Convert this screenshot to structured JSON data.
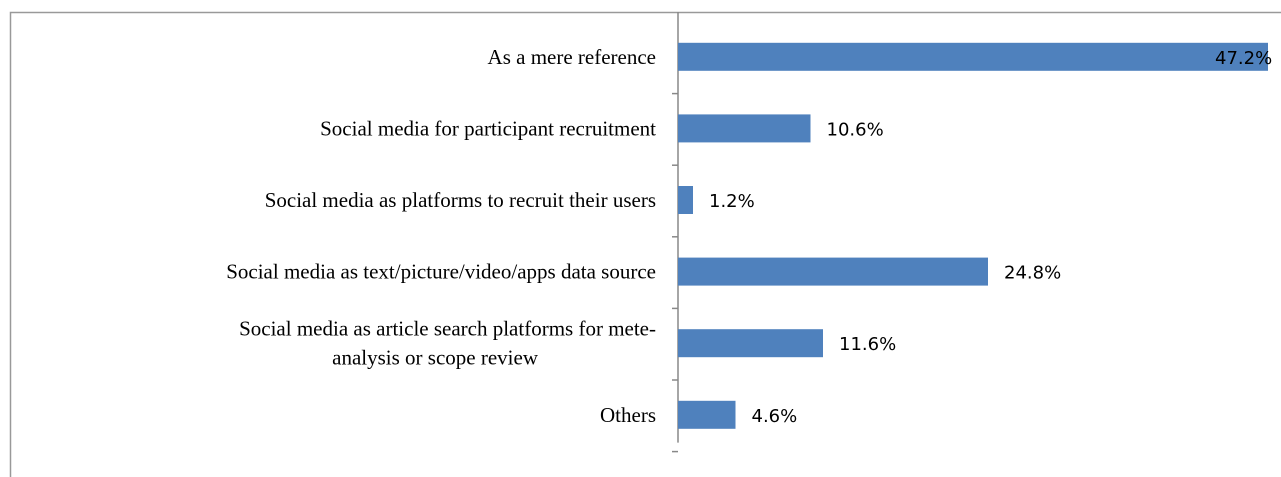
{
  "chart_data": {
    "type": "bar",
    "orientation": "horizontal",
    "categories": [
      "As a mere reference",
      "Social media for participant recruitment",
      "Social media as platforms to recruit their users",
      "Social media as text/picture/video/apps data source",
      "Social media as article search platforms for mete-\nanalysis or scope review",
      "Others"
    ],
    "values": [
      47.2,
      10.6,
      1.2,
      24.8,
      11.6,
      4.6
    ],
    "value_labels": [
      "47.2%",
      "10.6%",
      "1.2%",
      "24.8%",
      "11.6%",
      "4.6%"
    ],
    "color": "#4f81bd",
    "xlim": [
      0,
      48
    ]
  }
}
